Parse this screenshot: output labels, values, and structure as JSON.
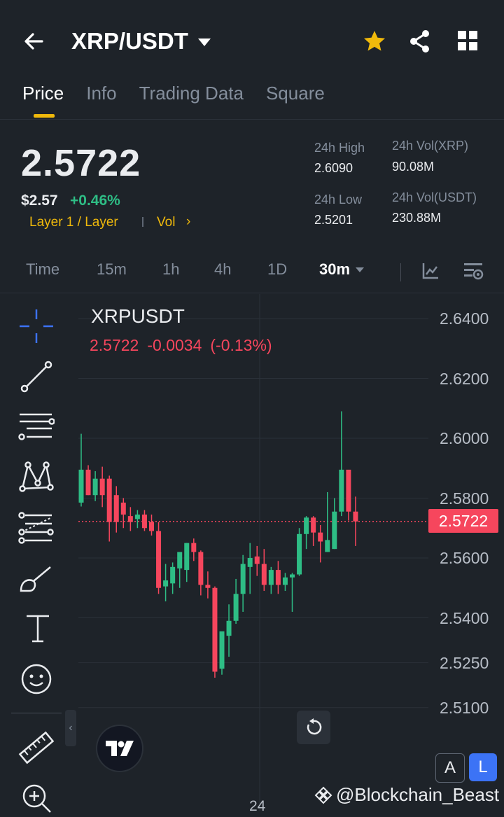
{
  "header": {
    "pair": "XRP/USDT",
    "icons": [
      "back-arrow-icon",
      "chevron-down-icon",
      "star-icon",
      "share-icon",
      "grid-icon"
    ],
    "favorite_color": "#f0b90b"
  },
  "tabs": [
    {
      "label": "Price",
      "active": true
    },
    {
      "label": "Info",
      "active": false
    },
    {
      "label": "Trading Data",
      "active": false
    },
    {
      "label": "Square",
      "active": false
    }
  ],
  "ticker": {
    "last_price": "2.5722",
    "usd_price": "$2.57",
    "change_pct": "+0.46%",
    "tag_category": "Layer 1 / Layer",
    "tag_vol": "Vol",
    "tag_chevron": "›",
    "high_label": "24h High",
    "high_value": "2.6090",
    "low_label": "24h Low",
    "low_value": "2.5201",
    "vol_base_label": "24h Vol(XRP)",
    "vol_base_value": "90.08M",
    "vol_quote_label": "24h Vol(USDT)",
    "vol_quote_value": "230.88M"
  },
  "intervals": {
    "items": [
      "Time",
      "15m",
      "1h",
      "4h",
      "1D"
    ],
    "selected": "30m"
  },
  "chart": {
    "symbol": "XRPUSDT",
    "last": "2.5722",
    "change": "-0.0034",
    "change_pct": "(-0.13%)",
    "price_tag": "2.5722",
    "x_label": "24",
    "watermark": "@Blockchain_Beast",
    "btn_a": "A",
    "btn_l": "L",
    "collapse_glyph": "‹",
    "tools": [
      "crosshair-icon",
      "trendline-icon",
      "horizontal-lines-icon",
      "pattern-icon",
      "fib-icon",
      "brush-icon",
      "text-icon",
      "emoji-icon",
      "ruler-icon",
      "zoom-in-icon"
    ],
    "colors": {
      "up": "#2ebd85",
      "down": "#f6465d"
    }
  },
  "chart_data": {
    "type": "candlestick",
    "symbol": "XRPUSDT",
    "y_ticks": [
      "2.6400",
      "2.6200",
      "2.6000",
      "2.5800",
      "2.5600",
      "2.5400",
      "2.5250",
      "2.5100"
    ],
    "ylim": [
      2.505,
      2.648
    ],
    "last_price": 2.5722,
    "candles": [
      {
        "o": 2.5785,
        "h": 2.6015,
        "l": 2.5772,
        "c": 2.5895
      },
      {
        "o": 2.5895,
        "h": 2.591,
        "l": 2.581,
        "c": 2.581
      },
      {
        "o": 2.581,
        "h": 2.589,
        "l": 2.579,
        "c": 2.5865
      },
      {
        "o": 2.5865,
        "h": 2.5905,
        "l": 2.577,
        "c": 2.581
      },
      {
        "o": 2.5865,
        "h": 2.5875,
        "l": 2.5655,
        "c": 2.572
      },
      {
        "o": 2.581,
        "h": 2.584,
        "l": 2.5685,
        "c": 2.572
      },
      {
        "o": 2.5785,
        "h": 2.58,
        "l": 2.57,
        "c": 2.5745
      },
      {
        "o": 2.574,
        "h": 2.577,
        "l": 2.569,
        "c": 2.572
      },
      {
        "o": 2.573,
        "h": 2.576,
        "l": 2.57,
        "c": 2.5745
      },
      {
        "o": 2.5745,
        "h": 2.576,
        "l": 2.569,
        "c": 2.57
      },
      {
        "o": 2.572,
        "h": 2.5745,
        "l": 2.5675,
        "c": 2.569
      },
      {
        "o": 2.569,
        "h": 2.572,
        "l": 2.548,
        "c": 2.55
      },
      {
        "o": 2.5505,
        "h": 2.558,
        "l": 2.5455,
        "c": 2.5525
      },
      {
        "o": 2.5515,
        "h": 2.5585,
        "l": 2.548,
        "c": 2.557
      },
      {
        "o": 2.5565,
        "h": 2.5615,
        "l": 2.55,
        "c": 2.562
      },
      {
        "o": 2.556,
        "h": 2.565,
        "l": 2.552,
        "c": 2.565
      },
      {
        "o": 2.565,
        "h": 2.5665,
        "l": 2.559,
        "c": 2.562
      },
      {
        "o": 2.562,
        "h": 2.5625,
        "l": 2.5475,
        "c": 2.551
      },
      {
        "o": 2.551,
        "h": 2.5555,
        "l": 2.5465,
        "c": 2.55
      },
      {
        "o": 2.55,
        "h": 2.5505,
        "l": 2.52,
        "c": 2.522
      },
      {
        "o": 2.523,
        "h": 2.5345,
        "l": 2.521,
        "c": 2.5355
      },
      {
        "o": 2.534,
        "h": 2.5445,
        "l": 2.527,
        "c": 2.539
      },
      {
        "o": 2.539,
        "h": 2.553,
        "l": 2.538,
        "c": 2.548
      },
      {
        "o": 2.548,
        "h": 2.561,
        "l": 2.542,
        "c": 2.558
      },
      {
        "o": 2.557,
        "h": 2.565,
        "l": 2.548,
        "c": 2.56
      },
      {
        "o": 2.5605,
        "h": 2.564,
        "l": 2.554,
        "c": 2.558
      },
      {
        "o": 2.558,
        "h": 2.563,
        "l": 2.549,
        "c": 2.551
      },
      {
        "o": 2.551,
        "h": 2.557,
        "l": 2.548,
        "c": 2.556
      },
      {
        "o": 2.556,
        "h": 2.559,
        "l": 2.548,
        "c": 2.551
      },
      {
        "o": 2.551,
        "h": 2.555,
        "l": 2.549,
        "c": 2.5535
      },
      {
        "o": 2.5535,
        "h": 2.555,
        "l": 2.542,
        "c": 2.5545
      },
      {
        "o": 2.5545,
        "h": 2.57,
        "l": 2.554,
        "c": 2.568
      },
      {
        "o": 2.568,
        "h": 2.574,
        "l": 2.563,
        "c": 2.5735
      },
      {
        "o": 2.5735,
        "h": 2.574,
        "l": 2.564,
        "c": 2.5685
      },
      {
        "o": 2.5685,
        "h": 2.571,
        "l": 2.5585,
        "c": 2.5655
      },
      {
        "o": 2.562,
        "h": 2.582,
        "l": 2.562,
        "c": 2.566
      },
      {
        "o": 2.563,
        "h": 2.58,
        "l": 2.563,
        "c": 2.5755
      },
      {
        "o": 2.5755,
        "h": 2.609,
        "l": 2.574,
        "c": 2.5895
      },
      {
        "o": 2.5895,
        "h": 2.589,
        "l": 2.5725,
        "c": 2.5755
      },
      {
        "o": 2.5755,
        "h": 2.5805,
        "l": 2.564,
        "c": 2.5722
      }
    ]
  }
}
